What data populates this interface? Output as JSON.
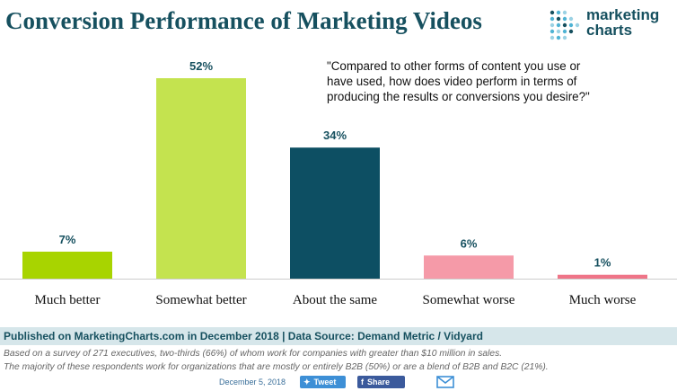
{
  "header": {
    "title": "Conversion Performance of Marketing Videos",
    "logo_line1": "marketing",
    "logo_line2": "charts",
    "logo_icon": "dot-grid-logo-icon"
  },
  "question": "\"Compared to other forms of content you use or have used, how does video perform in terms of producing the results or conversions you desire?\"",
  "chart_data": {
    "type": "bar",
    "title": "Conversion Performance of Marketing Videos",
    "categories": [
      "Much better",
      "Somewhat better",
      "About the same",
      "Somewhat worse",
      "Much worse"
    ],
    "values": [
      7,
      52,
      34,
      6,
      1
    ],
    "value_labels": [
      "7%",
      "52%",
      "34%",
      "6%",
      "1%"
    ],
    "colors": [
      "#a8d400",
      "#c4e34f",
      "#0d4f63",
      "#f59aa8",
      "#ef7588"
    ],
    "ylim": [
      0,
      52
    ],
    "grid": false,
    "legend": "none"
  },
  "footer": {
    "published": "Published on MarketingCharts.com in December 2018 | Data Source: Demand Metric / Vidyard",
    "note1": "Based on a survey of 271 executives, two-thirds (66%) of whom work for companies with greater than $10 million in sales.",
    "note2": "The majority of these respondents work for organizations that are mostly or entirely B2B (50%) or are a blend of B2B and B2C (21%).",
    "date": "December 5, 2018",
    "tweet_label": "Tweet",
    "share_label": "Share",
    "twitter_icon": "twitter-bird-icon",
    "facebook_icon": "facebook-icon",
    "mail_icon": "mail-icon",
    "accent": "#16505f"
  }
}
